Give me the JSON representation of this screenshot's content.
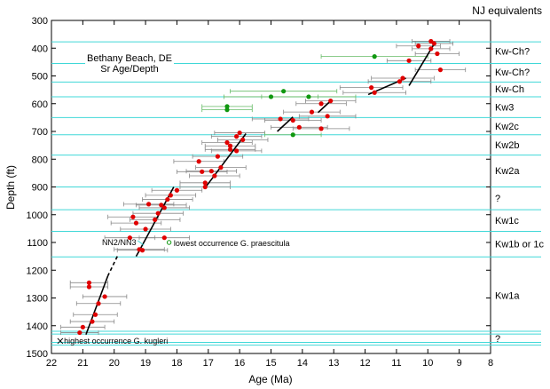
{
  "chart_data": {
    "type": "scatter",
    "title_lines": [
      "Bethany Beach, DE",
      "Sr Age/Depth"
    ],
    "xlabel": "Age (Ma)",
    "ylabel": "Depth (ft)",
    "right_title": "NJ equivalents",
    "xlim": [
      22,
      8
    ],
    "ylim": [
      300,
      1500
    ],
    "x_ticks": [
      22,
      21,
      20,
      19,
      18,
      17,
      16,
      15,
      14,
      13,
      12,
      11,
      10,
      9,
      8
    ],
    "y_ticks": [
      300,
      400,
      500,
      600,
      700,
      800,
      900,
      1000,
      1100,
      1200,
      1300,
      1400,
      1500
    ],
    "colors": {
      "sequence_boundary": "#40d8d8",
      "red_points": "#e00000",
      "green_points": "#109810",
      "errorbar": "#888888",
      "green_errorbar": "#66bb66",
      "regression_line": "#000000"
    },
    "sequence_boundaries": [
      377,
      455,
      522,
      575,
      650,
      712,
      785,
      900,
      982,
      1060,
      1152,
      1420,
      1430,
      1460,
      1470
    ],
    "units": [
      {
        "label": "Kw-Ch?",
        "depth": 410
      },
      {
        "label": "Kw-Ch?",
        "depth": 485
      },
      {
        "label": "Kw-Ch",
        "depth": 546
      },
      {
        "label": "Kw3",
        "depth": 612
      },
      {
        "label": "Kw2c",
        "depth": 680
      },
      {
        "label": "Kw2b",
        "depth": 748
      },
      {
        "label": "Kw2a",
        "depth": 840
      },
      {
        "label": "?",
        "depth": 940
      },
      {
        "label": "Kw1c",
        "depth": 1020
      },
      {
        "label": "Kw1b or 1c",
        "depth": 1105
      },
      {
        "label": "Kw1a",
        "depth": 1290
      },
      {
        "label": "?",
        "depth": 1445
      }
    ],
    "series": [
      {
        "color": "red",
        "points": [
          {
            "x": 9.9,
            "y": 375,
            "err": 0.6
          },
          {
            "x": 9.8,
            "y": 383,
            "err": 0.6
          },
          {
            "x": 10.3,
            "y": 392,
            "err": 0.7
          },
          {
            "x": 9.9,
            "y": 402,
            "err": 0.6
          },
          {
            "x": 9.7,
            "y": 420,
            "err": 0.7
          },
          {
            "x": 10.6,
            "y": 445,
            "err": 0.7
          },
          {
            "x": 9.6,
            "y": 478,
            "err": 0.8
          },
          {
            "x": 10.8,
            "y": 508,
            "err": 1.0
          },
          {
            "x": 10.9,
            "y": 520,
            "err": 1.0
          },
          {
            "x": 11.8,
            "y": 542,
            "err": 1.0
          },
          {
            "x": 11.7,
            "y": 560,
            "err": 1.0
          },
          {
            "x": 13.4,
            "y": 600,
            "err": 0.8
          },
          {
            "x": 13.1,
            "y": 590,
            "err": 0.8
          },
          {
            "x": 13.7,
            "y": 630,
            "err": 0.9
          },
          {
            "x": 13.2,
            "y": 645,
            "err": 0.9
          },
          {
            "x": 14.7,
            "y": 655,
            "err": 0.9
          },
          {
            "x": 14.3,
            "y": 660,
            "err": 0.9
          },
          {
            "x": 14.1,
            "y": 685,
            "err": 0.9
          },
          {
            "x": 13.4,
            "y": 690,
            "err": 0.9
          },
          {
            "x": 16.0,
            "y": 705,
            "err": 0.8
          },
          {
            "x": 16.1,
            "y": 718,
            "err": 0.8
          },
          {
            "x": 15.9,
            "y": 730,
            "err": 0.8
          },
          {
            "x": 16.4,
            "y": 740,
            "err": 0.8
          },
          {
            "x": 16.3,
            "y": 752,
            "err": 0.8
          },
          {
            "x": 16.3,
            "y": 765,
            "err": 0.8
          },
          {
            "x": 16.1,
            "y": 770,
            "err": 0.8
          },
          {
            "x": 16.7,
            "y": 790,
            "err": 0.8
          },
          {
            "x": 17.3,
            "y": 808,
            "err": 0.8
          },
          {
            "x": 16.6,
            "y": 830,
            "err": 0.8
          },
          {
            "x": 16.9,
            "y": 843,
            "err": 0.8
          },
          {
            "x": 17.2,
            "y": 845,
            "err": 0.8
          },
          {
            "x": 16.8,
            "y": 860,
            "err": 0.8
          },
          {
            "x": 17.1,
            "y": 885,
            "err": 0.8
          },
          {
            "x": 17.1,
            "y": 900,
            "err": 0.8
          },
          {
            "x": 18.0,
            "y": 912,
            "err": 0.8
          },
          {
            "x": 18.2,
            "y": 930,
            "err": 0.8
          },
          {
            "x": 18.3,
            "y": 945,
            "err": 0.8
          },
          {
            "x": 18.9,
            "y": 962,
            "err": 0.8
          },
          {
            "x": 18.5,
            "y": 965,
            "err": 0.8
          },
          {
            "x": 18.4,
            "y": 975,
            "err": 0.8
          },
          {
            "x": 18.6,
            "y": 995,
            "err": 0.8
          },
          {
            "x": 19.4,
            "y": 1008,
            "err": 0.8
          },
          {
            "x": 18.7,
            "y": 1018,
            "err": 0.8
          },
          {
            "x": 19.3,
            "y": 1030,
            "err": 0.8
          },
          {
            "x": 19.0,
            "y": 1052,
            "err": 0.8
          },
          {
            "x": 19.5,
            "y": 1083,
            "err": 0.8
          },
          {
            "x": 18.4,
            "y": 1083,
            "err": 0.8
          },
          {
            "x": 19.2,
            "y": 1125,
            "err": 0.8
          },
          {
            "x": 19.1,
            "y": 1128,
            "err": 0.8
          },
          {
            "x": 20.8,
            "y": 1245,
            "err": 0.6
          },
          {
            "x": 20.8,
            "y": 1260,
            "err": 0.6
          },
          {
            "x": 20.3,
            "y": 1295,
            "err": 0.7
          },
          {
            "x": 20.5,
            "y": 1320,
            "err": 0.7
          },
          {
            "x": 20.6,
            "y": 1360,
            "err": 0.7
          },
          {
            "x": 20.7,
            "y": 1385,
            "err": 0.7
          },
          {
            "x": 21.0,
            "y": 1405,
            "err": 0.7
          },
          {
            "x": 21.1,
            "y": 1425,
            "err": 0.6
          }
        ]
      },
      {
        "color": "green",
        "points": [
          {
            "x": 11.7,
            "y": 430,
            "err": 1.7
          },
          {
            "x": 14.6,
            "y": 555,
            "err": 1.7
          },
          {
            "x": 15.0,
            "y": 575,
            "err": 1.5
          },
          {
            "x": 13.8,
            "y": 575,
            "err": 1.5
          },
          {
            "x": 16.4,
            "y": 610,
            "err": 0.8
          },
          {
            "x": 16.4,
            "y": 622,
            "err": 0.8
          },
          {
            "x": 14.3,
            "y": 712,
            "err": 0.9
          }
        ]
      }
    ],
    "regression_lines": [
      {
        "x1": 9.8,
        "y1": 385,
        "x2": 10.6,
        "y2": 535,
        "dashed": false
      },
      {
        "x1": 10.7,
        "y1": 508,
        "x2": 11.9,
        "y2": 567,
        "dashed": false
      },
      {
        "x1": 13.1,
        "y1": 590,
        "x2": 13.5,
        "y2": 632,
        "dashed": false
      },
      {
        "x1": 14.3,
        "y1": 648,
        "x2": 14.8,
        "y2": 700,
        "dashed": false
      },
      {
        "x1": 15.8,
        "y1": 708,
        "x2": 17.1,
        "y2": 903,
        "dashed": false
      },
      {
        "x1": 18.1,
        "y1": 900,
        "x2": 19.2,
        "y2": 1130,
        "dashed": false
      },
      {
        "x1": 19.2,
        "y1": 1130,
        "x2": 19.3,
        "y2": 1150,
        "dashed": false
      },
      {
        "x1": 19.9,
        "y1": 1150,
        "x2": 20.2,
        "y2": 1220,
        "dashed": true
      },
      {
        "x1": 20.2,
        "y1": 1220,
        "x2": 20.9,
        "y2": 1432,
        "dashed": false
      }
    ],
    "annotations": [
      {
        "text": "NN2/NN3",
        "x": 19.3,
        "y": 1100,
        "anchor": "end"
      },
      {
        "text": "highest occurrence G. kugleri",
        "x": 21.6,
        "y": 1455,
        "anchor": "start"
      },
      {
        "text": "lowest occurrence G. praescitula",
        "x": 18.1,
        "y": 1103,
        "anchor": "start"
      }
    ]
  }
}
